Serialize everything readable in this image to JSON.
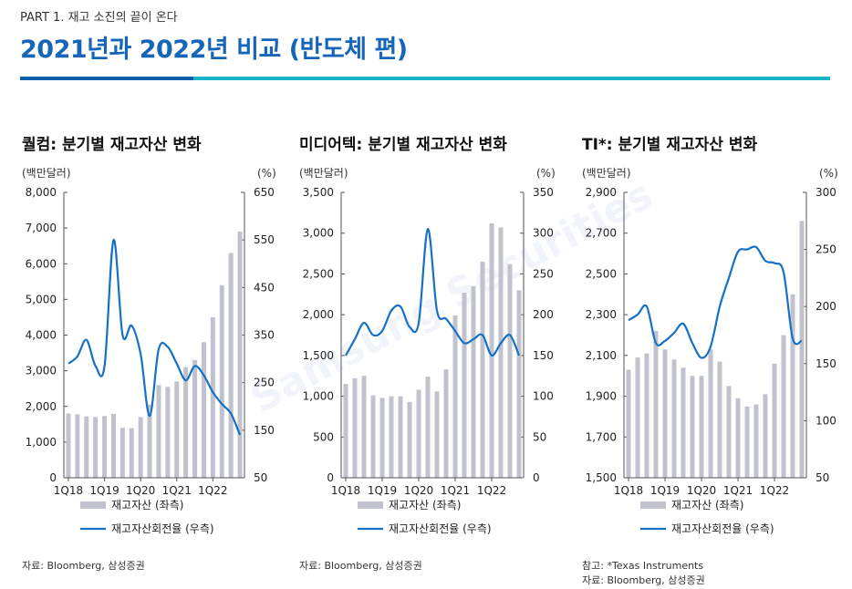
{
  "header": {
    "part": "PART 1. 재고 소진의 끝이 온다",
    "title": "2021년과 2022년 비교 (반도체 편)"
  },
  "watermark": "Samsung Securities",
  "colors": {
    "bar": "#c0c3ce",
    "line": "#1670c4",
    "title": "#1565b8"
  },
  "chart_data": [
    {
      "type": "bar+line",
      "title": "퀄컴: 분기별 재고자산 변화",
      "left_unit": "(백만달러)",
      "right_unit": "(%)",
      "left_ticks": [
        "8,000",
        "7,000",
        "6,000",
        "5,000",
        "4,000",
        "3,000",
        "2,000",
        "1,000",
        "0"
      ],
      "right_ticks": [
        "650",
        "550",
        "450",
        "350",
        "250",
        "150",
        "50"
      ],
      "ylim_left": [
        0,
        8000
      ],
      "ylim_right": [
        50,
        650
      ],
      "x_ticks": [
        "1Q18",
        "1Q19",
        "1Q20",
        "1Q21",
        "1Q22"
      ],
      "legend": [
        "재고자산 (좌측)",
        "재고자산회전율 (우측)"
      ],
      "source": [
        "자료: Bloomberg, 삼성증권"
      ],
      "bars": [
        1800,
        1780,
        1720,
        1700,
        1730,
        1790,
        1400,
        1390,
        1700,
        2050,
        2600,
        2550,
        2700,
        3100,
        3300,
        3800,
        4500,
        5400,
        6300,
        6900
      ],
      "line": [
        290,
        305,
        340,
        285,
        285,
        550,
        350,
        370,
        310,
        180,
        320,
        325,
        290,
        255,
        285,
        265,
        230,
        205,
        185,
        140
      ]
    },
    {
      "type": "bar+line",
      "title": "미디어텍: 분기별 재고자산 변화",
      "left_unit": "(백만달러)",
      "right_unit": "(%)",
      "left_ticks": [
        "3,500",
        "3,000",
        "2,500",
        "2,000",
        "1,500",
        "1,000",
        "500",
        "0"
      ],
      "right_ticks": [
        "350",
        "300",
        "250",
        "200",
        "150",
        "100",
        "50",
        "0"
      ],
      "ylim_left": [
        0,
        3500
      ],
      "ylim_right": [
        0,
        350
      ],
      "x_ticks": [
        "1Q18",
        "1Q19",
        "1Q20",
        "1Q21",
        "1Q22"
      ],
      "legend": [
        "재고자산 (좌측)",
        "재고자산회전율 (우측)"
      ],
      "source": [
        "자료: Bloomberg, 삼성증권"
      ],
      "bars": [
        1150,
        1220,
        1250,
        1010,
        980,
        1000,
        1000,
        930,
        1080,
        1240,
        1060,
        1330,
        1990,
        2270,
        2350,
        2650,
        3120,
        3070,
        2620,
        2300
      ],
      "line": [
        150,
        170,
        190,
        175,
        180,
        205,
        210,
        185,
        190,
        305,
        205,
        195,
        180,
        165,
        170,
        175,
        150,
        165,
        175,
        150
      ]
    },
    {
      "type": "bar+line",
      "title": "TI*: 분기별 재고자산 변화",
      "left_unit": "(백만달러)",
      "right_unit": "(%)",
      "left_ticks": [
        "2,900",
        "2,700",
        "2,500",
        "2,300",
        "2,100",
        "1,900",
        "1,700",
        "1,500"
      ],
      "right_ticks": [
        "300",
        "250",
        "200",
        "150",
        "100",
        "50"
      ],
      "ylim_left": [
        1500,
        2900
      ],
      "ylim_right": [
        50,
        300
      ],
      "x_ticks": [
        "1Q18",
        "1Q19",
        "1Q20",
        "1Q21",
        "1Q22"
      ],
      "legend": [
        "재고자산 (좌측)",
        "재고자산회전율 (우측)"
      ],
      "source": [
        "참고: *Texas Instruments",
        "자료: Bloomberg, 삼성증권"
      ],
      "bars": [
        2030,
        2090,
        2110,
        2220,
        2130,
        2080,
        2040,
        2000,
        2000,
        2130,
        2070,
        1950,
        1890,
        1850,
        1860,
        1910,
        2060,
        2200,
        2400,
        2760
      ],
      "line": [
        188,
        193,
        200,
        168,
        170,
        177,
        185,
        168,
        155,
        165,
        200,
        225,
        248,
        250,
        252,
        240,
        238,
        230,
        172,
        170
      ]
    }
  ]
}
